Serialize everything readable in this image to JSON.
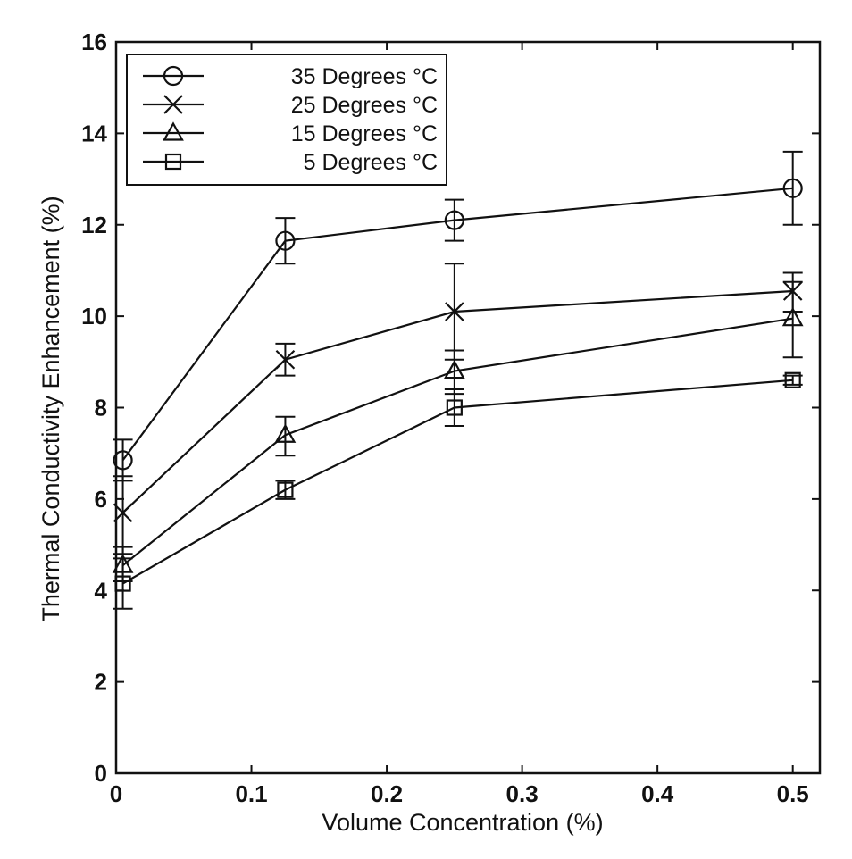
{
  "chart_data": {
    "type": "line",
    "title": "",
    "xlabel": "Volume Concentration (%)",
    "ylabel": "Thermal Conductivity Enhancement (%)",
    "xlim": [
      0,
      0.52
    ],
    "ylim": [
      0,
      16
    ],
    "xticks": [
      0,
      0.1,
      0.2,
      0.3,
      0.4,
      0.5
    ],
    "xtick_labels": [
      "0",
      "0.1",
      "0.2",
      "0.3",
      "0.4",
      "0.5"
    ],
    "yticks": [
      0,
      2,
      4,
      6,
      8,
      10,
      12,
      14,
      16
    ],
    "ytick_labels": [
      "0",
      "2",
      "4",
      "6",
      "8",
      "10",
      "12",
      "14",
      "16"
    ],
    "grid": false,
    "legend_position": "top-left",
    "x": [
      0.005,
      0.125,
      0.25,
      0.5
    ],
    "series": [
      {
        "name": "35 Degrees °C",
        "marker": "circle",
        "values": [
          6.85,
          11.65,
          12.1,
          12.8
        ],
        "err_low": [
          6.4,
          11.15,
          11.65,
          12.0
        ],
        "err_high": [
          7.3,
          12.15,
          12.55,
          13.6
        ]
      },
      {
        "name": "25 Degrees °C",
        "marker": "x",
        "values": [
          5.7,
          9.05,
          10.1,
          10.55
        ],
        "err_low": [
          4.8,
          8.7,
          9.05,
          10.1
        ],
        "err_high": [
          6.5,
          9.4,
          11.15,
          10.95
        ]
      },
      {
        "name": "15 Degrees °C",
        "marker": "triangle",
        "values": [
          4.55,
          7.4,
          8.8,
          9.95
        ],
        "err_low": [
          4.2,
          6.95,
          8.3,
          9.1
        ],
        "err_high": [
          4.95,
          7.8,
          9.25,
          10.75
        ]
      },
      {
        "name": "5 Degrees °C",
        "marker": "square",
        "values": [
          4.15,
          6.2,
          8.0,
          8.6
        ],
        "err_low": [
          3.6,
          6.0,
          7.6,
          8.5
        ],
        "err_high": [
          4.7,
          6.4,
          8.4,
          8.7
        ]
      }
    ]
  }
}
